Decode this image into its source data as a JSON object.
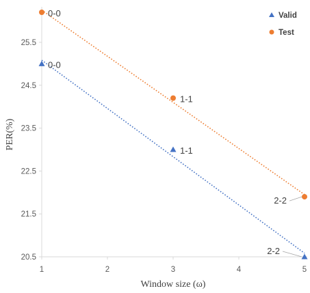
{
  "chart_data": {
    "type": "scatter",
    "xlabel": "Window size (ω)",
    "ylabel": "PER(%)",
    "xlim": [
      1,
      5
    ],
    "ylim": [
      20.5,
      26.2
    ],
    "x_ticks": [
      "1",
      "2",
      "3",
      "4",
      "5"
    ],
    "y_ticks": [
      "20.5",
      "21.5",
      "22.5",
      "23.5",
      "24.5",
      "25.5"
    ],
    "grid": false,
    "legend_position": "top-right",
    "trendline": "linear (dotted)",
    "series": [
      {
        "name": "Valid",
        "marker": "triangle",
        "color": "#4472c4",
        "points": [
          {
            "x": 1,
            "y": 25.0,
            "label": "0-0"
          },
          {
            "x": 3,
            "y": 23.0,
            "label": "1-1"
          },
          {
            "x": 5,
            "y": 20.5,
            "label": "2-2"
          }
        ]
      },
      {
        "name": "Test",
        "marker": "circle",
        "color": "#ed7d31",
        "points": [
          {
            "x": 1,
            "y": 26.2,
            "label": "0-0"
          },
          {
            "x": 3,
            "y": 24.2,
            "label": "1-1"
          },
          {
            "x": 5,
            "y": 21.9,
            "label": "2-2"
          }
        ]
      }
    ]
  }
}
